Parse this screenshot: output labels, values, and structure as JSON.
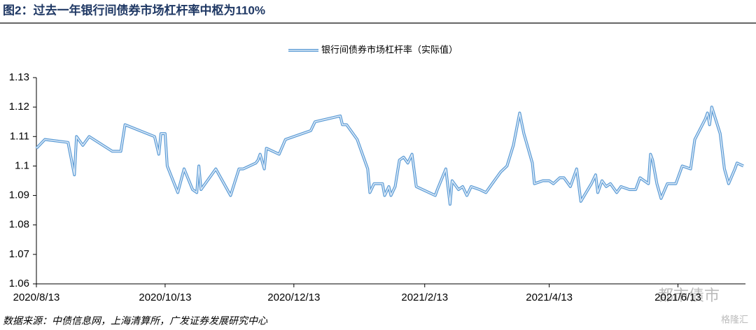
{
  "chart_data": {
    "type": "line",
    "title": "图2：过去一年银行间债券市场杠杆率中枢为110%",
    "source": "数据来源：中债信息网，上海清算所，广发证券发展研究中心",
    "watermarks": [
      "都市债市",
      "格隆汇"
    ],
    "x": [
      "2020/8/13",
      "2020/8/17",
      "2020/8/28",
      "2020/8/31",
      "2020/9/1",
      "2020/9/4",
      "2020/9/7",
      "2020/9/18",
      "2020/9/22",
      "2020/9/24",
      "2020/10/8",
      "2020/10/10",
      "2020/10/11",
      "2020/10/13",
      "2020/10/14",
      "2020/10/19",
      "2020/10/22",
      "2020/10/26",
      "2020/10/28",
      "2020/10/29",
      "2020/10/30",
      "2020/11/6",
      "2020/11/13",
      "2020/11/17",
      "2020/11/19",
      "2020/11/25",
      "2020/11/26",
      "2020/11/27",
      "2020/11/29",
      "2020/11/30",
      "2020/12/6",
      "2020/12/9",
      "2020/12/21",
      "2020/12/23",
      "2021/1/4",
      "2021/1/5",
      "2021/1/7",
      "2021/1/12",
      "2021/1/14",
      "2021/1/17",
      "2021/1/18",
      "2021/1/20",
      "2021/1/24",
      "2021/1/25",
      "2021/1/27",
      "2021/1/28",
      "2021/1/30",
      "2021/2/1",
      "2021/2/3",
      "2021/2/5",
      "2021/2/7",
      "2021/2/9",
      "2021/2/18",
      "2021/2/19",
      "2021/2/23",
      "2021/2/25",
      "2021/2/26",
      "2021/3/1",
      "2021/3/3",
      "2021/3/5",
      "2021/3/7",
      "2021/3/11",
      "2021/3/14",
      "2021/3/17",
      "2021/3/21",
      "2021/3/24",
      "2021/3/27",
      "2021/3/30",
      "2021/4/1",
      "2021/4/5",
      "2021/4/6",
      "2021/4/10",
      "2021/4/13",
      "2021/4/15",
      "2021/4/18",
      "2021/4/20",
      "2021/4/23",
      "2021/4/26",
      "2021/4/28",
      "2021/5/3",
      "2021/5/5",
      "2021/5/6",
      "2021/5/8",
      "2021/5/10",
      "2021/5/12",
      "2021/5/15",
      "2021/5/17",
      "2021/5/21",
      "2021/5/24",
      "2021/5/26",
      "2021/5/30",
      "2021/5/31",
      "2021/6/1",
      "2021/6/3",
      "2021/6/5",
      "2021/6/8",
      "2021/6/12",
      "2021/6/15",
      "2021/6/19",
      "2021/6/21",
      "2021/6/26",
      "2021/6/27",
      "2021/6/28",
      "2021/6/29",
      "2021/7/3",
      "2021/7/5",
      "2021/7/7",
      "2021/7/10",
      "2021/7/11",
      "2021/7/14"
    ],
    "series": [
      {
        "name": "银行间债券市场杠杆率（实际值）",
        "color": "#5b9bd5",
        "values": [
          1.106,
          1.109,
          1.108,
          1.097,
          1.11,
          1.107,
          1.11,
          1.105,
          1.105,
          1.114,
          1.11,
          1.104,
          1.111,
          1.111,
          1.1,
          1.091,
          1.099,
          1.092,
          1.091,
          1.1,
          1.092,
          1.099,
          1.09,
          1.099,
          1.099,
          1.101,
          1.102,
          1.104,
          1.099,
          1.106,
          1.104,
          1.109,
          1.112,
          1.115,
          1.117,
          1.114,
          1.114,
          1.109,
          1.105,
          1.099,
          1.091,
          1.094,
          1.094,
          1.09,
          1.093,
          1.09,
          1.093,
          1.102,
          1.103,
          1.101,
          1.104,
          1.093,
          1.09,
          1.092,
          1.099,
          1.087,
          1.095,
          1.092,
          1.093,
          1.09,
          1.093,
          1.092,
          1.091,
          1.094,
          1.098,
          1.1,
          1.107,
          1.118,
          1.111,
          1.101,
          1.094,
          1.095,
          1.095,
          1.094,
          1.096,
          1.096,
          1.093,
          1.099,
          1.088,
          1.094,
          1.097,
          1.091,
          1.095,
          1.093,
          1.094,
          1.091,
          1.093,
          1.092,
          1.092,
          1.096,
          1.094,
          1.104,
          1.102,
          1.094,
          1.089,
          1.094,
          1.094,
          1.1,
          1.099,
          1.109,
          1.116,
          1.118,
          1.114,
          1.12,
          1.111,
          1.099,
          1.094,
          1.099,
          1.101,
          1.1
        ]
      }
    ],
    "xlim": [
      "2020/8/13",
      "2021/7/15"
    ],
    "xticks": [
      "2020/8/13",
      "2020/10/13",
      "2020/12/13",
      "2021/2/13",
      "2021/4/13",
      "2021/6/13"
    ],
    "ylim": [
      1.06,
      1.13
    ],
    "yticks": [
      1.06,
      1.07,
      1.08,
      1.09,
      1.1,
      1.11,
      1.12,
      1.13
    ],
    "grid": false
  }
}
